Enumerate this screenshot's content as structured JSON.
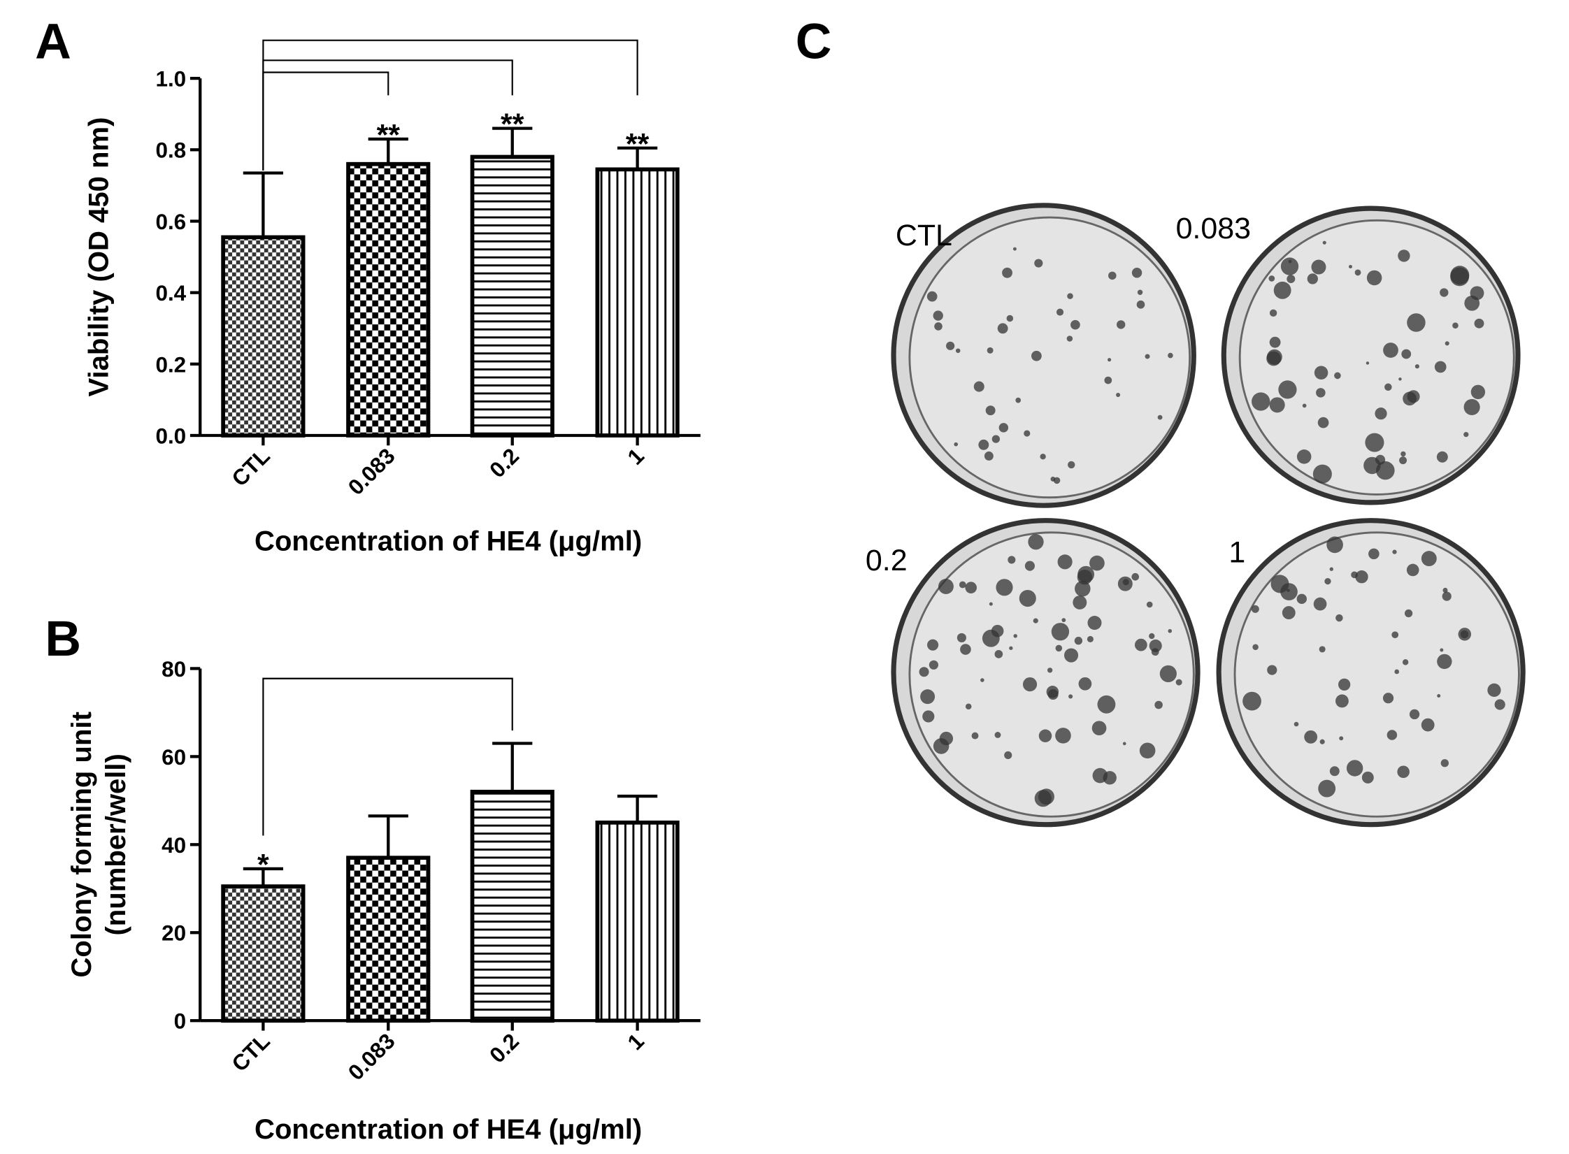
{
  "chart_data": [
    {
      "type": "bar",
      "panel_label": "A",
      "ylabel": [
        "Viability (OD 450 nm)"
      ],
      "xlabel": "Concentration of HE4 (μg/ml)",
      "categories": [
        "CTL",
        "0.083",
        "0.2",
        "1"
      ],
      "values": [
        0.555,
        0.76,
        0.78,
        0.745
      ],
      "errors": [
        0.18,
        0.07,
        0.08,
        0.06
      ],
      "significance_labels": [
        null,
        "**",
        "**",
        "**"
      ],
      "patterns": [
        "fine-checker",
        "checker",
        "horizontal",
        "vertical"
      ],
      "color": "#000000",
      "ylim": [
        0,
        1.0
      ],
      "yticks": [
        {
          "value": 0,
          "label": "0.0"
        },
        0.2,
        0.4,
        0.6,
        0.8,
        {
          "value": 1.0,
          "label": "1.0"
        }
      ]
    },
    {
      "type": "bar",
      "panel_label": "B",
      "ylabel": [
        "Colony forming unit",
        "(number/well)"
      ],
      "xlabel": "Concentration of HE4 (μg/ml)",
      "categories": [
        "CTL",
        "0.083",
        "0.2",
        "1"
      ],
      "values": [
        30.5,
        37,
        52,
        45
      ],
      "errors": [
        4,
        9.5,
        11,
        6
      ],
      "significance_labels": [
        "*",
        null,
        null,
        null
      ],
      "patterns": [
        "fine-checker",
        "checker",
        "horizontal",
        "vertical"
      ],
      "color": "#000000",
      "ylim": [
        0,
        80
      ],
      "yticks": [
        0,
        20,
        40,
        60,
        80
      ]
    }
  ],
  "plates": {
    "panel_label": "C",
    "labels": [
      "CTL",
      "0.083",
      "0.2",
      "1"
    ]
  }
}
